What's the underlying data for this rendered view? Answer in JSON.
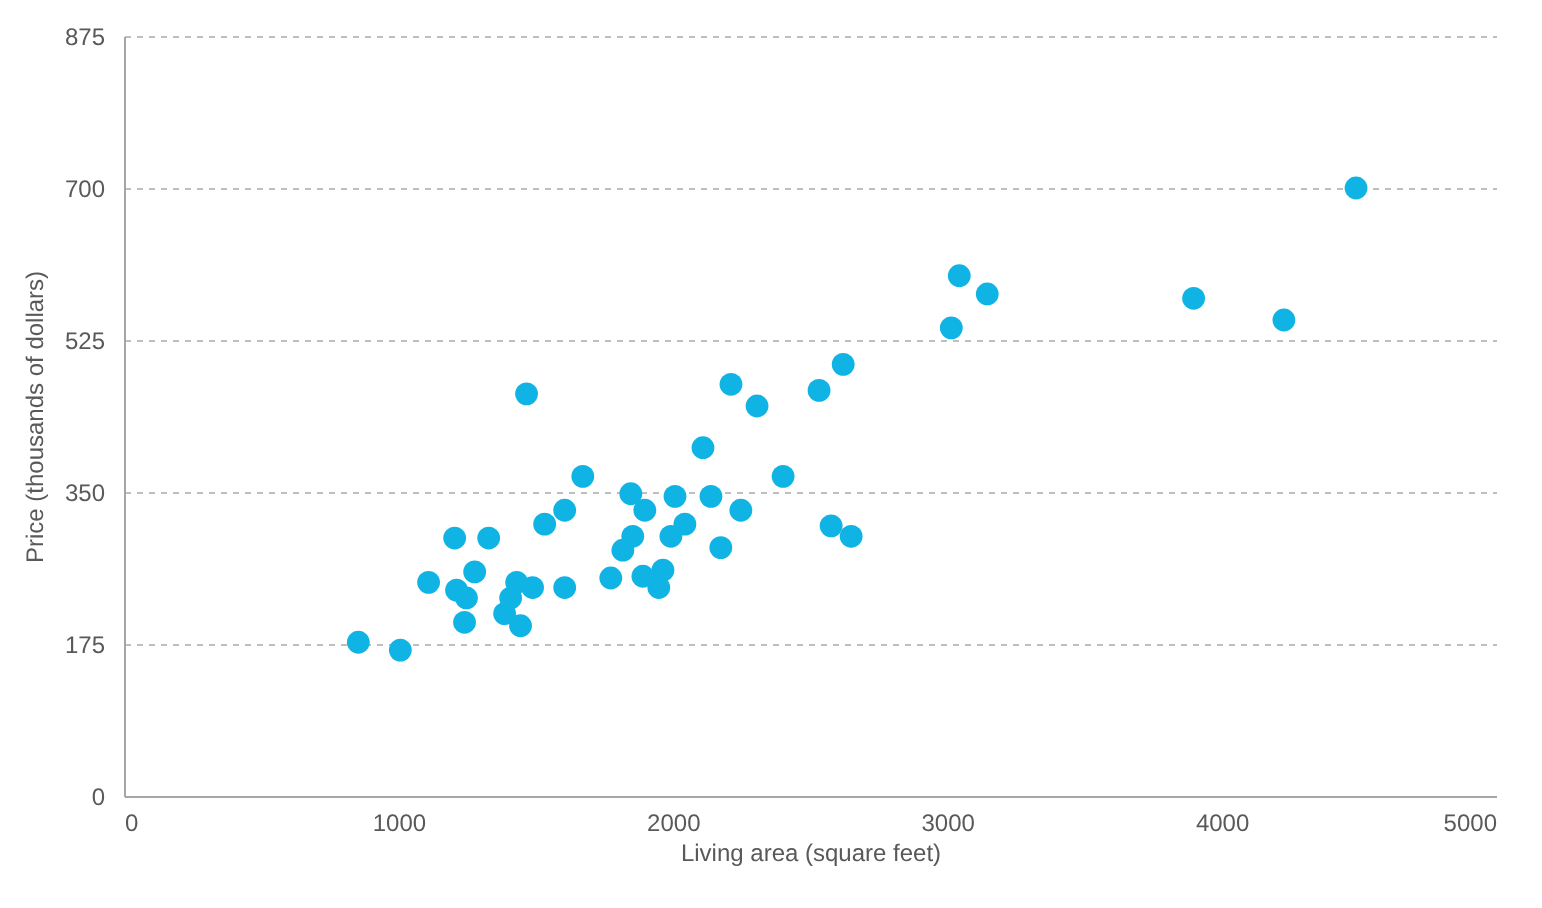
{
  "chart_data": {
    "type": "scatter",
    "xlabel": "Living area (square feet)",
    "ylabel": "Price (thousands of dollars)",
    "xlim": [
      0,
      5000
    ],
    "xticks": [
      0,
      1000,
      2000,
      3000,
      4000,
      5000
    ],
    "ylim": [
      0,
      875
    ],
    "yticks": [
      0,
      175,
      350,
      525,
      700,
      875
    ],
    "grid": "y",
    "marker": "circle",
    "series": [
      {
        "color": "#10b4e4",
        "x": [
          854,
          1007,
          1110,
          1205,
          1329,
          1212,
          1248,
          1278,
          1241,
          1387,
          1409,
          1431,
          1445,
          1489,
          1606,
          1533,
          1606,
          1672,
          1467,
          1774,
          1818,
          1854,
          1847,
          1898,
          1891,
          1949,
          1964,
          1993,
          2008,
          2044,
          2110,
          2139,
          2212,
          2307,
          2402,
          2248,
          2175,
          2577,
          2650,
          2533,
          2621,
          3015,
          3044,
          3146,
          3898,
          4227,
          4490
        ],
        "values": [
          177,
          168,
          246,
          297,
          297,
          237,
          228,
          258,
          200,
          210,
          228,
          246,
          196,
          240,
          240,
          313,
          329,
          368,
          463,
          251,
          283,
          299,
          348,
          329,
          253,
          240,
          260,
          299,
          345,
          313,
          401,
          345,
          474,
          449,
          368,
          329,
          286,
          311,
          299,
          467,
          497,
          539,
          599,
          578,
          573,
          548,
          700
        ]
      }
    ]
  }
}
